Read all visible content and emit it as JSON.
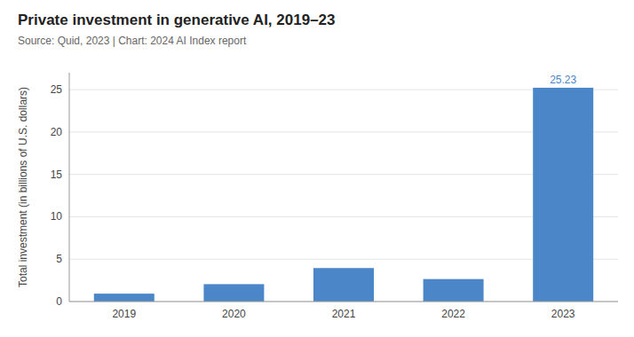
{
  "chart_data": {
    "type": "bar",
    "title": "Private investment in generative AI, 2019–23",
    "subtitle": "Source: Quid, 2023 | Chart: 2024 AI Index report",
    "categories": [
      "2019",
      "2020",
      "2021",
      "2022",
      "2023"
    ],
    "values": [
      0.93,
      2.05,
      3.95,
      2.65,
      25.23
    ],
    "color": "#4a86c8",
    "y_label": "Total investment (in billions of U.S. dollars)",
    "ylim": [
      0,
      27
    ],
    "yticks": [
      0,
      5,
      10,
      15,
      20,
      25
    ],
    "grid": true,
    "annotations": [
      {
        "text": "25.23",
        "x": "2023",
        "y": 25.23,
        "color": "#4a86c8"
      }
    ]
  }
}
